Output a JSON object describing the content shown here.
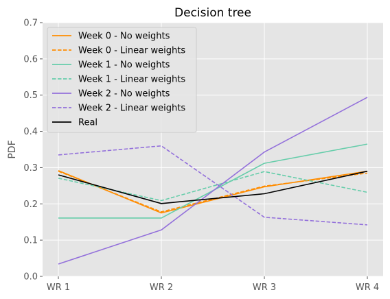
{
  "chart_data": {
    "type": "line",
    "title": "Decision tree",
    "xlabel": "",
    "ylabel": "PDF",
    "categories": [
      "WR 1",
      "WR 2",
      "WR 3",
      "WR 4"
    ],
    "ylim": [
      0,
      0.7
    ],
    "yticks": [
      0.0,
      0.1,
      0.2,
      0.3,
      0.4,
      0.5,
      0.6,
      0.7
    ],
    "ytick_labels": [
      "0.0",
      "0.1",
      "0.2",
      "0.3",
      "0.4",
      "0.5",
      "0.6",
      "0.7"
    ],
    "grid": true,
    "legend_position": "top-left",
    "series": [
      {
        "name": "Week 0 - No weights",
        "color": "#ff8c00",
        "dash": "solid",
        "values": [
          0.292,
          0.175,
          0.247,
          0.29
        ]
      },
      {
        "name": "Week 0 - Linear weights",
        "color": "#ff8c00",
        "dash": "dashed",
        "values": [
          0.29,
          0.178,
          0.249,
          0.285
        ]
      },
      {
        "name": "Week 1 - No weights",
        "color": "#66cdaa",
        "dash": "solid",
        "values": [
          0.161,
          0.161,
          0.312,
          0.365
        ]
      },
      {
        "name": "Week 1 - Linear weights",
        "color": "#66cdaa",
        "dash": "dashed",
        "values": [
          0.271,
          0.209,
          0.289,
          0.232
        ]
      },
      {
        "name": "Week 2 - No weights",
        "color": "#9370db",
        "dash": "solid",
        "values": [
          0.034,
          0.128,
          0.343,
          0.494
        ]
      },
      {
        "name": "Week 2 - Linear weights",
        "color": "#9370db",
        "dash": "dashed",
        "values": [
          0.335,
          0.36,
          0.163,
          0.142
        ]
      },
      {
        "name": "Real",
        "color": "#000000",
        "dash": "solid",
        "values": [
          0.28,
          0.201,
          0.228,
          0.29
        ]
      }
    ]
  }
}
